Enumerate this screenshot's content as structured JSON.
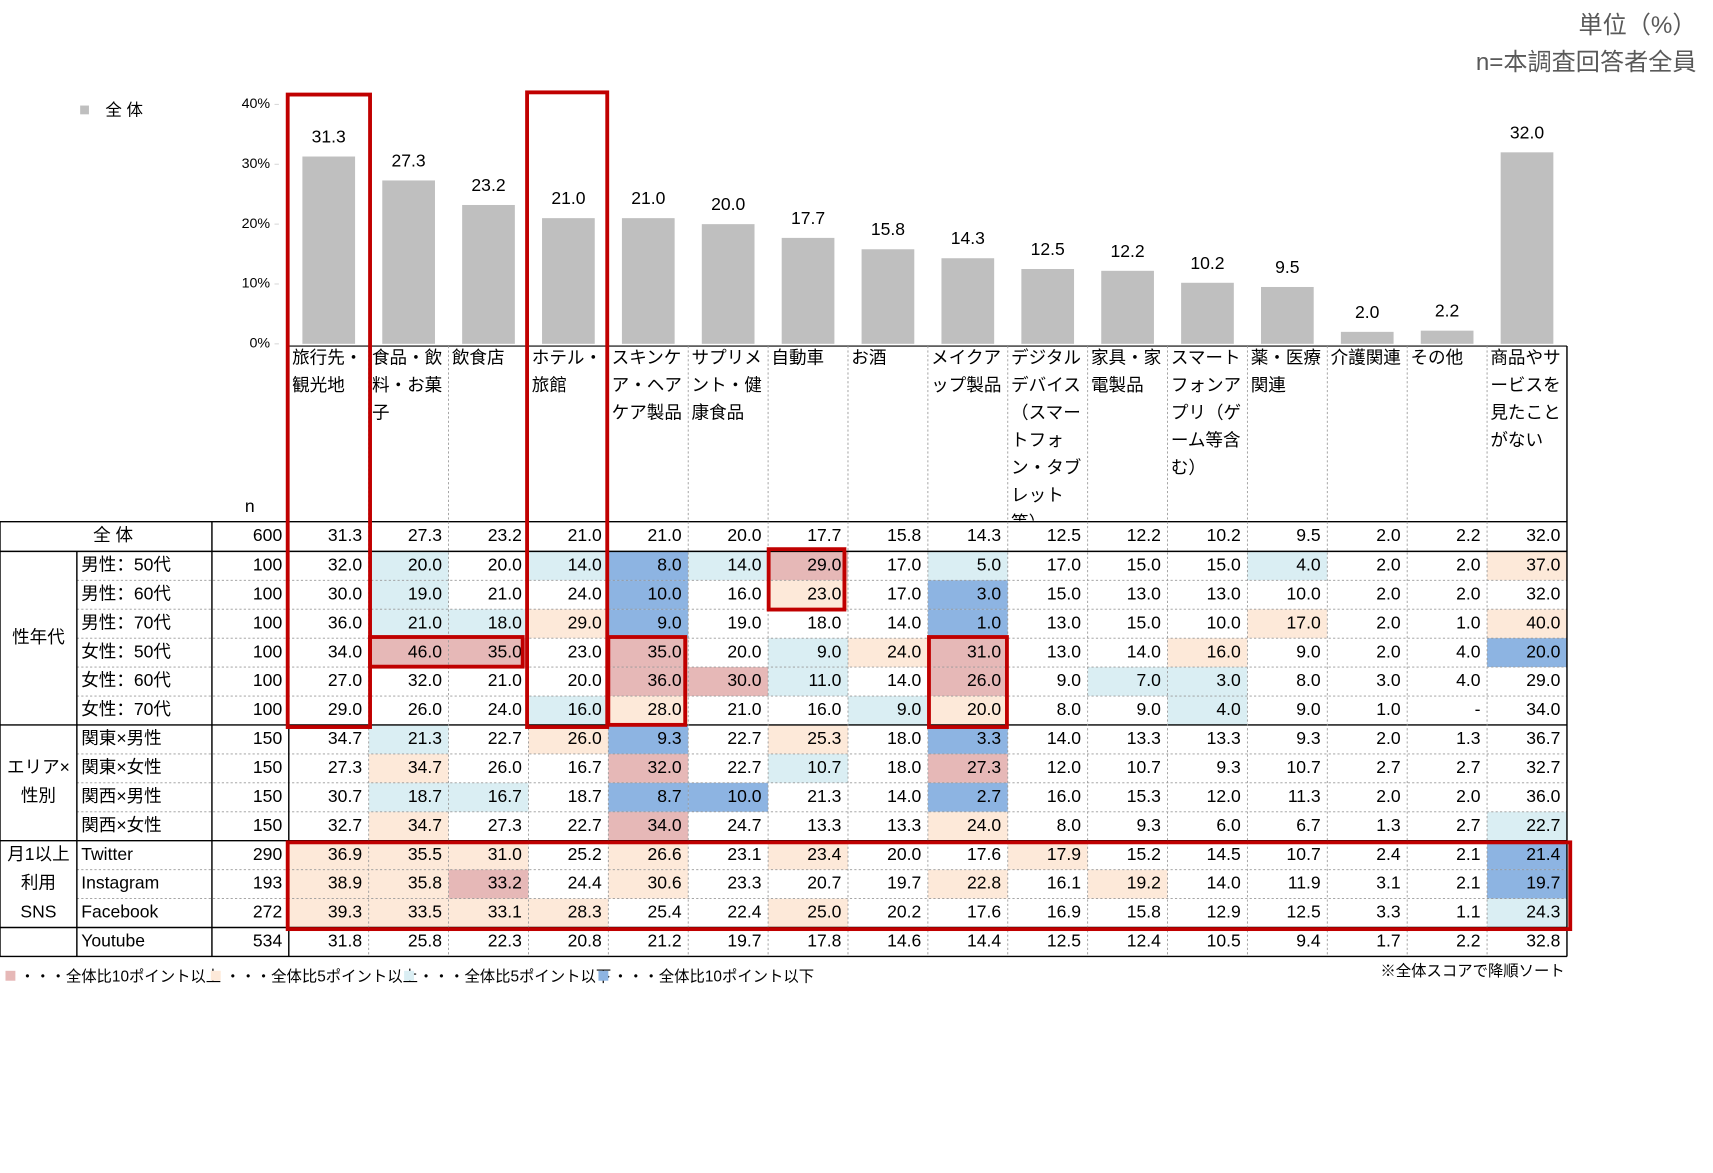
{
  "unit_note": [
    "単位（%）",
    "n=本調査回答者全員"
  ],
  "chart_data": {
    "type": "bar",
    "categories": [
      "旅行先・観光地",
      "食品・飲料・お菓子",
      "飲食店",
      "ホテル・旅館",
      "スキンケア・ヘアケア製品",
      "サプリメント・健康食品",
      "自動車",
      "お酒",
      "メイクアップ製品",
      "デジタルデバイス（スマートフォン・タブレット等）",
      "家具・家電製品",
      "スマートフォンアプリ（ゲーム等含む）",
      "薬・医療関連",
      "介護関連",
      "その他",
      "商品やサービスを見たことがない"
    ],
    "series": [
      {
        "name": "全 体",
        "color": "#bfbfbf",
        "values": [
          31.3,
          27.3,
          23.2,
          21.0,
          21.0,
          20.0,
          17.7,
          15.8,
          14.3,
          12.5,
          12.2,
          10.2,
          9.5,
          2.0,
          2.2,
          32.0
        ],
        "value_labels": [
          "31.3",
          "27.3",
          "23.2",
          "21.0",
          "21.0",
          "20.0",
          "17.7",
          "15.8",
          "14.3",
          "12.5",
          "12.2",
          "10.2",
          "9.5",
          "2.0",
          "2.2",
          "32.0"
        ]
      }
    ],
    "ylim": [
      0,
      40
    ],
    "yticks": [
      {
        "value": 0,
        "label": "0%"
      },
      {
        "value": 10,
        "label": "10%"
      },
      {
        "value": 20,
        "label": "20%"
      },
      {
        "value": 30,
        "label": "30%"
      },
      {
        "value": 40,
        "label": "40%"
      }
    ],
    "legend": "top-left"
  },
  "table": {
    "n_header": "n",
    "total_label": "全 体",
    "total_n": "600",
    "groups": [
      {
        "label": [
          "性年代"
        ],
        "rows": [
          {
            "label": "男性：50代",
            "n": "100",
            "cells": [
              "32.0",
              "20.0",
              "20.0",
              "14.0",
              "8.0",
              "14.0",
              "29.0",
              "17.0",
              "5.0",
              "17.0",
              "15.0",
              "15.0",
              "4.0",
              "2.0",
              "2.0",
              "37.0"
            ],
            "shade": [
              null,
              2,
              null,
              2,
              3,
              2,
              0,
              null,
              2,
              null,
              null,
              null,
              2,
              null,
              null,
              1
            ]
          },
          {
            "label": "男性：60代",
            "n": "100",
            "cells": [
              "30.0",
              "19.0",
              "21.0",
              "24.0",
              "10.0",
              "16.0",
              "23.0",
              "17.0",
              "3.0",
              "15.0",
              "13.0",
              "13.0",
              "10.0",
              "2.0",
              "2.0",
              "32.0"
            ],
            "shade": [
              null,
              2,
              null,
              null,
              3,
              null,
              1,
              null,
              3,
              null,
              null,
              null,
              null,
              null,
              null,
              null
            ]
          },
          {
            "label": "男性：70代",
            "n": "100",
            "cells": [
              "36.0",
              "21.0",
              "18.0",
              "29.0",
              "9.0",
              "19.0",
              "18.0",
              "14.0",
              "1.0",
              "13.0",
              "15.0",
              "10.0",
              "17.0",
              "2.0",
              "1.0",
              "40.0"
            ],
            "shade": [
              null,
              2,
              2,
              1,
              3,
              null,
              null,
              null,
              3,
              null,
              null,
              null,
              1,
              null,
              null,
              1
            ]
          },
          {
            "label": "女性：50代",
            "n": "100",
            "cells": [
              "34.0",
              "46.0",
              "35.0",
              "23.0",
              "35.0",
              "20.0",
              "9.0",
              "24.0",
              "31.0",
              "13.0",
              "14.0",
              "16.0",
              "9.0",
              "2.0",
              "4.0",
              "20.0"
            ],
            "shade": [
              null,
              0,
              0,
              null,
              0,
              null,
              2,
              1,
              0,
              null,
              null,
              1,
              null,
              null,
              null,
              3
            ]
          },
          {
            "label": "女性：60代",
            "n": "100",
            "cells": [
              "27.0",
              "32.0",
              "21.0",
              "20.0",
              "36.0",
              "30.0",
              "11.0",
              "14.0",
              "26.0",
              "9.0",
              "7.0",
              "3.0",
              "8.0",
              "3.0",
              "4.0",
              "29.0"
            ],
            "shade": [
              null,
              null,
              null,
              null,
              0,
              0,
              2,
              null,
              0,
              null,
              2,
              2,
              null,
              null,
              null,
              null
            ]
          },
          {
            "label": "女性：70代",
            "n": "100",
            "cells": [
              "29.0",
              "26.0",
              "24.0",
              "16.0",
              "28.0",
              "21.0",
              "16.0",
              "9.0",
              "20.0",
              "8.0",
              "9.0",
              "4.0",
              "9.0",
              "1.0",
              "-",
              "34.0"
            ],
            "shade": [
              null,
              null,
              null,
              2,
              1,
              null,
              null,
              2,
              1,
              null,
              null,
              2,
              null,
              null,
              null,
              null
            ]
          }
        ]
      },
      {
        "label": [
          "エリア×",
          "性別"
        ],
        "rows": [
          {
            "label": "関東×男性",
            "n": "150",
            "cells": [
              "34.7",
              "21.3",
              "22.7",
              "26.0",
              "9.3",
              "22.7",
              "25.3",
              "18.0",
              "3.3",
              "14.0",
              "13.3",
              "13.3",
              "9.3",
              "2.0",
              "1.3",
              "36.7"
            ],
            "shade": [
              null,
              2,
              null,
              1,
              3,
              null,
              1,
              null,
              3,
              null,
              null,
              null,
              null,
              null,
              null,
              null
            ]
          },
          {
            "label": "関東×女性",
            "n": "150",
            "cells": [
              "27.3",
              "34.7",
              "26.0",
              "16.7",
              "32.0",
              "22.7",
              "10.7",
              "18.0",
              "27.3",
              "12.0",
              "10.7",
              "9.3",
              "10.7",
              "2.7",
              "2.7",
              "32.7"
            ],
            "shade": [
              null,
              1,
              null,
              null,
              0,
              null,
              2,
              null,
              0,
              null,
              null,
              null,
              null,
              null,
              null,
              null
            ]
          },
          {
            "label": "関西×男性",
            "n": "150",
            "cells": [
              "30.7",
              "18.7",
              "16.7",
              "18.7",
              "8.7",
              "10.0",
              "21.3",
              "14.0",
              "2.7",
              "16.0",
              "15.3",
              "12.0",
              "11.3",
              "2.0",
              "2.0",
              "36.0"
            ],
            "shade": [
              null,
              2,
              2,
              null,
              3,
              3,
              null,
              null,
              3,
              null,
              null,
              null,
              null,
              null,
              null,
              null
            ]
          },
          {
            "label": "関西×女性",
            "n": "150",
            "cells": [
              "32.7",
              "34.7",
              "27.3",
              "22.7",
              "34.0",
              "24.7",
              "13.3",
              "13.3",
              "24.0",
              "8.0",
              "9.3",
              "6.0",
              "6.7",
              "1.3",
              "2.7",
              "22.7"
            ],
            "shade": [
              null,
              1,
              null,
              null,
              0,
              null,
              null,
              null,
              1,
              null,
              null,
              null,
              null,
              null,
              null,
              2
            ]
          }
        ]
      },
      {
        "label": [
          "月1以上",
          "利用",
          "SNS"
        ],
        "rows": [
          {
            "label": "Twitter",
            "n": "290",
            "cells": [
              "36.9",
              "35.5",
              "31.0",
              "25.2",
              "26.6",
              "23.1",
              "23.4",
              "20.0",
              "17.6",
              "17.9",
              "15.2",
              "14.5",
              "10.7",
              "2.4",
              "2.1",
              "21.4"
            ],
            "shade": [
              1,
              1,
              1,
              null,
              1,
              null,
              1,
              null,
              null,
              1,
              null,
              null,
              null,
              null,
              null,
              3
            ]
          },
          {
            "label": "Instagram",
            "n": "193",
            "cells": [
              "38.9",
              "35.8",
              "33.2",
              "24.4",
              "30.6",
              "23.3",
              "20.7",
              "19.7",
              "22.8",
              "16.1",
              "19.2",
              "14.0",
              "11.9",
              "3.1",
              "2.1",
              "19.7"
            ],
            "shade": [
              1,
              1,
              0,
              null,
              1,
              null,
              null,
              null,
              1,
              null,
              1,
              null,
              null,
              null,
              null,
              3
            ]
          },
          {
            "label": "Facebook",
            "n": "272",
            "cells": [
              "39.3",
              "33.5",
              "33.1",
              "28.3",
              "25.4",
              "22.4",
              "25.0",
              "20.2",
              "17.6",
              "16.9",
              "15.8",
              "12.9",
              "12.5",
              "3.3",
              "1.1",
              "24.3"
            ],
            "shade": [
              1,
              1,
              1,
              1,
              null,
              null,
              1,
              null,
              null,
              null,
              null,
              null,
              null,
              null,
              null,
              2
            ]
          }
        ]
      },
      {
        "rows": [
          {
            "label": "Youtube",
            "n": "534",
            "cells": [
              "31.8",
              "25.8",
              "22.3",
              "20.8",
              "21.2",
              "19.7",
              "17.8",
              "14.6",
              "14.4",
              "12.5",
              "12.4",
              "10.5",
              "9.4",
              "1.7",
              "2.2",
              "32.8"
            ],
            "shade": [
              null,
              null,
              null,
              null,
              null,
              null,
              null,
              null,
              null,
              null,
              null,
              null,
              null,
              null,
              null,
              null
            ]
          }
        ]
      }
    ]
  },
  "shade_legend": [
    {
      "text": "・・・全体比10ポイント以上",
      "color": "#e6b8b7"
    },
    {
      "text": "・・・全体比5ポイント以上",
      "color": "#fde9d9"
    },
    {
      "text": "・・・全体比5ポイント以下",
      "color": "#daeef3"
    },
    {
      "text": "・・・全体比10ポイント以下",
      "color": "#8db4e2"
    }
  ],
  "note": "※全体スコアで降順ソート"
}
